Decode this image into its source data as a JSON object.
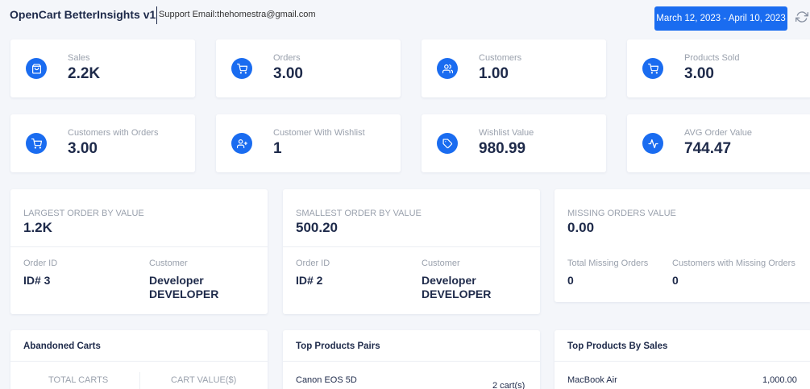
{
  "header": {
    "title": "OpenCart BetterInsights v1",
    "support": "Support Email:thehomestra@gmail.com",
    "date_range": "March 12, 2023 - April 10, 2023"
  },
  "colors": {
    "accent": "#1a6cf0",
    "background": "#f4f6fa",
    "text": "#1e2a4a",
    "muted": "#9aa1ad"
  },
  "stats": [
    {
      "label": "Sales",
      "value": "2.2K",
      "icon": "shopping-bag-icon"
    },
    {
      "label": "Orders",
      "value": "3.00",
      "icon": "cart-icon"
    },
    {
      "label": "Customers",
      "value": "1.00",
      "icon": "users-icon"
    },
    {
      "label": "Products Sold",
      "value": "3.00",
      "icon": "cart-icon"
    },
    {
      "label": "Customers with Orders",
      "value": "3.00",
      "icon": "cart-icon"
    },
    {
      "label": "Customer With Wishlist",
      "value": "1",
      "icon": "user-plus-icon"
    },
    {
      "label": "Wishlist Value",
      "value": "980.99",
      "icon": "tag-icon"
    },
    {
      "label": "AVG Order Value",
      "value": "744.47",
      "icon": "activity-icon"
    }
  ],
  "largest": {
    "label": "LARGEST ORDER BY VALUE",
    "value": "1.2K",
    "order_id_label": "Order ID",
    "order_id": "ID# 3",
    "customer_label": "Customer",
    "customer_line1": "Developer",
    "customer_line2": "DEVELOPER"
  },
  "smallest": {
    "label": "SMALLEST ORDER BY VALUE",
    "value": "500.20",
    "order_id_label": "Order ID",
    "order_id": "ID# 2",
    "customer_label": "Customer",
    "customer_line1": "Developer",
    "customer_line2": "DEVELOPER"
  },
  "missing": {
    "label": "MISSING ORDERS VALUE",
    "value": "0.00",
    "total_label": "Total Missing Orders",
    "total": "0",
    "customers_label": "Customers with Missing Orders",
    "customers": "0"
  },
  "abandoned": {
    "title": "Abandoned Carts",
    "col1": "TOTAL CARTS",
    "col2": "CART VALUE($)"
  },
  "pairs": {
    "title": "Top Products Pairs",
    "item": "Canon EOS 5D",
    "count": "2 cart(s)"
  },
  "top_sales": {
    "title": "Top Products By Sales",
    "item": "MacBook Air",
    "value": "1,000.00"
  }
}
